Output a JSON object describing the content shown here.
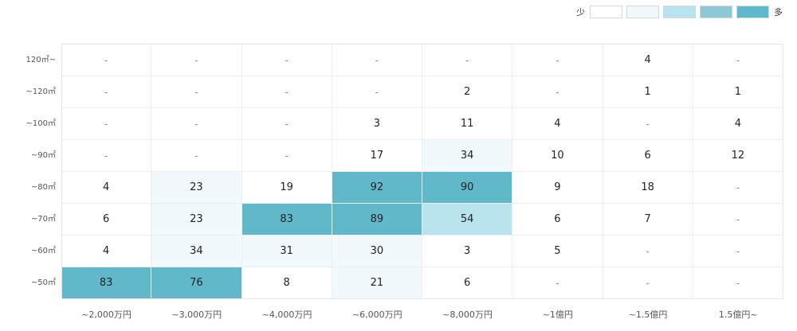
{
  "legend": {
    "low_label": "少",
    "high_label": "多",
    "swatch_colors": [
      "#ffffff",
      "#f1f9fc",
      "#b9e3ee",
      "#8cc8d6",
      "#62b8cb"
    ]
  },
  "chart_data": {
    "type": "heatmap",
    "title": "",
    "xlabel": "",
    "ylabel": "",
    "x_categories": [
      "~2,000万円",
      "~3,000万円",
      "~4,000万円",
      "~6,000万円",
      "~8,000万円",
      "~1億円",
      "~1.5億円",
      "1.5億円~"
    ],
    "y_categories": [
      "120㎡~",
      "~120㎡",
      "~100㎡",
      "~90㎡",
      "~80㎡",
      "~70㎡",
      "~60㎡",
      "~50㎡"
    ],
    "empty_marker": "-",
    "values": [
      [
        null,
        null,
        null,
        null,
        null,
        null,
        4,
        null
      ],
      [
        null,
        null,
        null,
        null,
        2,
        null,
        1,
        1
      ],
      [
        null,
        null,
        null,
        3,
        11,
        4,
        null,
        4
      ],
      [
        null,
        null,
        null,
        17,
        34,
        10,
        6,
        12
      ],
      [
        4,
        23,
        19,
        92,
        90,
        9,
        18,
        null
      ],
      [
        6,
        23,
        83,
        89,
        54,
        6,
        7,
        null
      ],
      [
        4,
        34,
        31,
        30,
        3,
        5,
        null,
        null
      ],
      [
        83,
        76,
        8,
        21,
        6,
        null,
        null,
        null
      ]
    ],
    "color_scale": [
      {
        "min": 0,
        "color": "#ffffff"
      },
      {
        "min": 20,
        "color": "#f1f9fc"
      },
      {
        "min": 50,
        "color": "#b9e3ee"
      },
      {
        "min": 70,
        "color": "#62b8cb"
      }
    ]
  }
}
